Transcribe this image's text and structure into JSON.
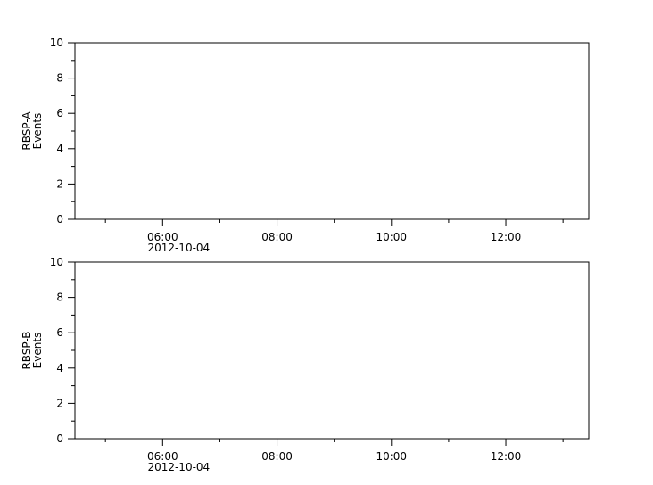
{
  "chart_data": [
    {
      "type": "line",
      "ylabel": [
        "RBSP-A",
        "Events"
      ],
      "ylim": [
        0,
        10
      ],
      "yticks": [
        "0",
        "2",
        "4",
        "6",
        "8",
        "10"
      ],
      "xlim": [
        "2012-10-04T04:28",
        "2012-10-04T13:27"
      ],
      "xticks": [
        "06:00",
        "08:00",
        "10:00",
        "12:00"
      ],
      "xtick_date_label": "2012-10-04",
      "series": [],
      "grid": false
    },
    {
      "type": "line",
      "ylabel": [
        "RBSP-B",
        "Events"
      ],
      "ylim": [
        0,
        10
      ],
      "yticks": [
        "0",
        "2",
        "4",
        "6",
        "8",
        "10"
      ],
      "xlim": [
        "2012-10-04T04:28",
        "2012-10-04T13:27"
      ],
      "xticks": [
        "06:00",
        "08:00",
        "10:00",
        "12:00"
      ],
      "xtick_date_label": "2012-10-04",
      "series": [],
      "grid": false
    }
  ],
  "colors": {
    "axis": "#000000",
    "background": "#ffffff"
  }
}
